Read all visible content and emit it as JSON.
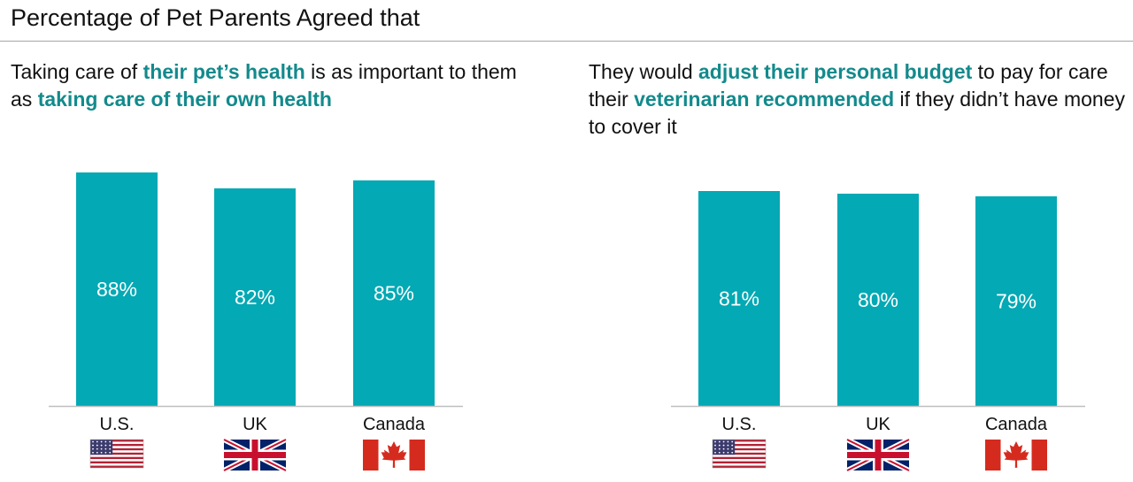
{
  "page_title": "Percentage of Pet Parents Agreed that",
  "colors": {
    "bar": "#03a9b4",
    "highlight": "#138a8c",
    "axis": "#bfbfbf"
  },
  "chart_data": [
    {
      "type": "bar",
      "title_parts": [
        {
          "text": "Taking care of ",
          "highlight": false
        },
        {
          "text": "their pet’s health",
          "highlight": true
        },
        {
          "text": " is as important to them as ",
          "highlight": false
        },
        {
          "text": "taking care of their own health",
          "highlight": true
        }
      ],
      "categories": [
        "U.S.",
        "UK",
        "Canada"
      ],
      "flag_icons": [
        "us-flag-icon",
        "uk-flag-icon",
        "canada-flag-icon"
      ],
      "values": [
        88,
        82,
        85
      ],
      "value_labels": [
        "88%",
        "82%",
        "85%"
      ],
      "ylim": [
        0,
        100
      ]
    },
    {
      "type": "bar",
      "title_parts": [
        {
          "text": "They would ",
          "highlight": false
        },
        {
          "text": "adjust their personal budget",
          "highlight": true
        },
        {
          "text": " to pay for care their ",
          "highlight": false
        },
        {
          "text": "veterinarian recommended",
          "highlight": true
        },
        {
          "text": " if they didn’t have money to cover it",
          "highlight": false
        }
      ],
      "categories": [
        "U.S.",
        "UK",
        "Canada"
      ],
      "flag_icons": [
        "us-flag-icon",
        "uk-flag-icon",
        "canada-flag-icon"
      ],
      "values": [
        81,
        80,
        79
      ],
      "value_labels": [
        "81%",
        "80%",
        "79%"
      ],
      "ylim": [
        0,
        100
      ]
    }
  ]
}
